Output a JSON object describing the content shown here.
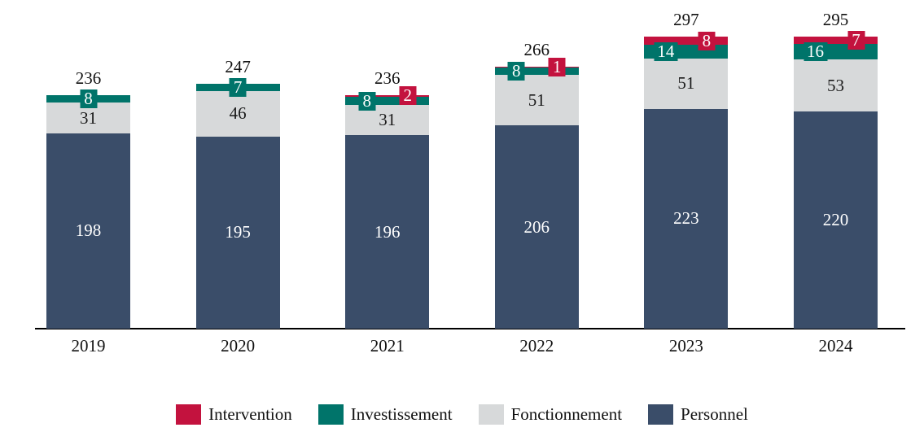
{
  "chart_data": {
    "type": "bar",
    "stacked": true,
    "title": "",
    "xlabel": "",
    "ylabel": "",
    "grid": false,
    "legend_position": "bottom",
    "categories": [
      "2019",
      "2020",
      "2021",
      "2022",
      "2023",
      "2024"
    ],
    "series": [
      {
        "name": "Intervention",
        "color": "#C3123E",
        "values": [
          0,
          0,
          2,
          1,
          8,
          7
        ]
      },
      {
        "name": "Investissement",
        "color": "#00746A",
        "values": [
          8,
          7,
          8,
          8,
          14,
          16
        ]
      },
      {
        "name": "Fonctionnement",
        "color": "#D7D9DA",
        "values": [
          31,
          46,
          31,
          51,
          51,
          53
        ]
      },
      {
        "name": "Personnel",
        "color": "#3A4D69",
        "values": [
          198,
          195,
          196,
          206,
          223,
          220
        ]
      }
    ],
    "totals": [
      236,
      247,
      236,
      266,
      297,
      295
    ],
    "ylim": [
      0,
      310
    ],
    "colors": {
      "intervention": "#C3123E",
      "investissement": "#00746A",
      "fonctionnement": "#D7D9DA",
      "personnel": "#3A4D69",
      "axis": "#000000",
      "text": "#111111",
      "bar_value_text_light": "#FFFFFF",
      "bar_value_text_dark": "#1A1A1A"
    },
    "legend": [
      "Intervention",
      "Investissement",
      "Fonctionnement",
      "Personnel"
    ]
  }
}
